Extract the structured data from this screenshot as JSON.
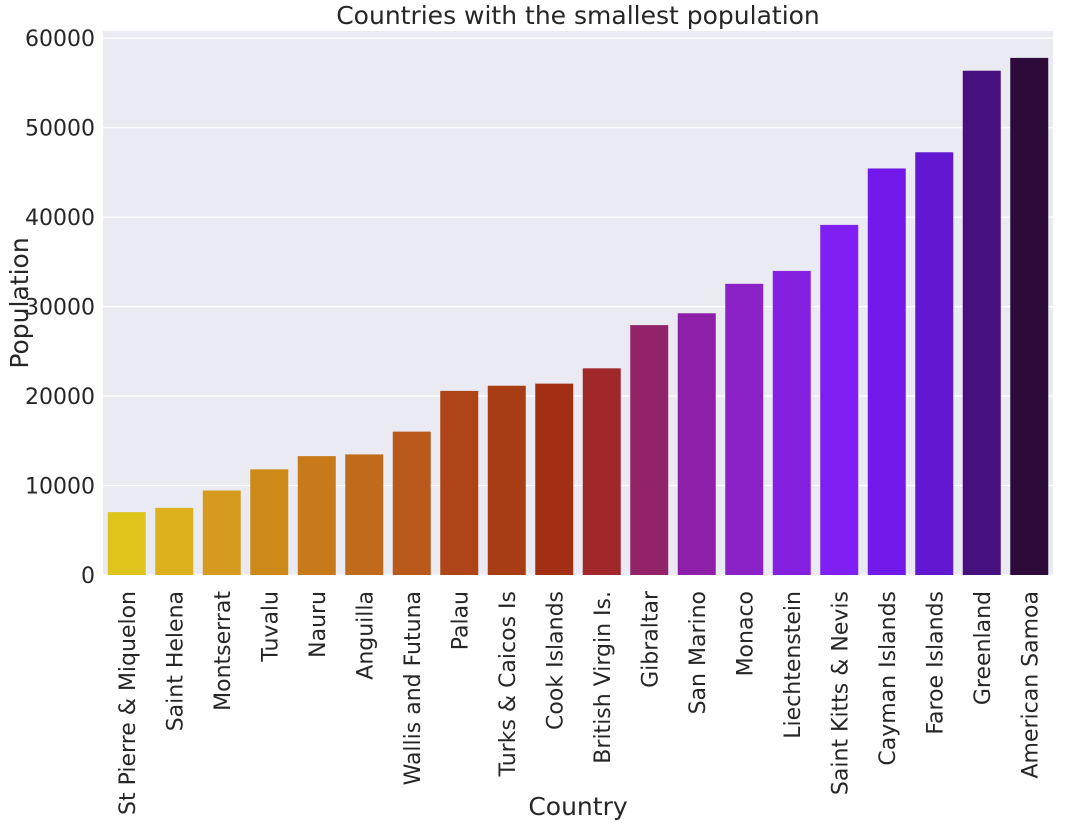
{
  "chart_data": {
    "type": "bar",
    "title": "Countries with the smallest population",
    "xlabel": "Country",
    "ylabel": "Population",
    "ylim": [
      0,
      60000
    ],
    "yticks": [
      0,
      10000,
      20000,
      30000,
      40000,
      50000,
      60000
    ],
    "grid": true,
    "categories": [
      "St Pierre & Miquelon",
      "Saint Helena",
      "Montserrat",
      "Tuvalu",
      "Nauru",
      "Anguilla",
      "Wallis and Futuna",
      "Palau",
      "Turks & Caicos Is",
      "Cook Islands",
      "British Virgin Is.",
      "Gibraltar",
      "San Marino",
      "Monaco",
      "Liechtenstein",
      "Saint Kitts & Nevis",
      "Cayman Islands",
      "Faroe Islands",
      "Greenland",
      "American Samoa"
    ],
    "values": [
      7026,
      7502,
      9439,
      11810,
      13287,
      13477,
      16025,
      20579,
      21152,
      21388,
      23098,
      27928,
      29251,
      32543,
      33987,
      39129,
      45436,
      47246,
      56361,
      57794
    ],
    "colors": [
      "#dfc41c",
      "#ddb01d",
      "#d69a1e",
      "#cd8a19",
      "#c87a1b",
      "#c06a1c",
      "#b8581a",
      "#ae4417",
      "#a83c14",
      "#a22f14",
      "#a0282a",
      "#922368",
      "#8d1fa8",
      "#8a22c8",
      "#8620e0",
      "#7f1ff3",
      "#7119ea",
      "#6218d0",
      "#46107f",
      "#2e0a3a"
    ]
  }
}
